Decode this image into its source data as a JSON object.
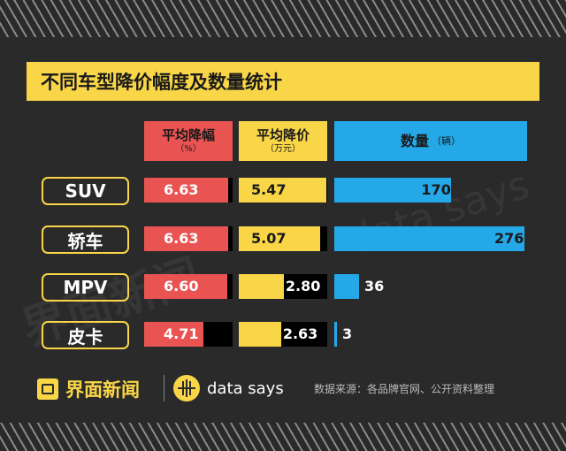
{
  "title": "不同车型降价幅度及数量统计",
  "headers": {
    "pct_line1": "平均降幅",
    "pct_line2": "（%）",
    "amt_line1": "平均降价",
    "amt_line2": "（万元）",
    "count_line1": "数量",
    "count_line2": "（辆）"
  },
  "chart_data": {
    "type": "bar",
    "title": "不同车型降价幅度及数量统计",
    "categories": [
      "SUV",
      "轿车",
      "MPV",
      "皮卡"
    ],
    "series": [
      {
        "name": "平均降幅（%）",
        "values": [
          6.63,
          6.63,
          6.6,
          4.71
        ],
        "display": [
          "6.63",
          "6.63",
          "6.60",
          "4.71"
        ]
      },
      {
        "name": "平均降价（万元）",
        "values": [
          5.47,
          5.07,
          2.8,
          2.63
        ],
        "display": [
          "5.47",
          "5.07",
          "2.80",
          "2.63"
        ]
      },
      {
        "name": "数量（辆）",
        "values": [
          170,
          276,
          36,
          3
        ],
        "display": [
          "170",
          "276",
          "36",
          "3"
        ]
      }
    ]
  },
  "colors": {
    "red": "#e95453",
    "yellow": "#f9d648",
    "blue": "#25a8e8",
    "background": "#2a2a2a"
  },
  "footer": {
    "logo_jiemian": "界面新闻",
    "logo_datasays": "data says",
    "source": "数据来源：各品牌官网、公开资料整理"
  },
  "watermark": {
    "left": "界面新闻",
    "right": "data says"
  }
}
